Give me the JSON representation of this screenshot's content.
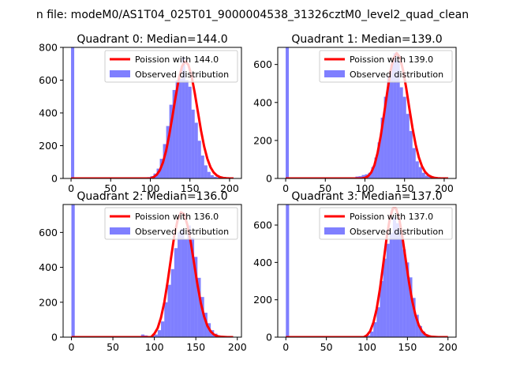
{
  "figure": {
    "suptitle": "n file: modeM0/AS1T04_025T01_9000004538_31326cztM0_level2_quad_clean"
  },
  "colors": {
    "fit_line": "#ff0000",
    "observed_bars": "#0000ff",
    "axes": "#000000",
    "legend_border": "#cccccc"
  },
  "chart_data": [
    {
      "type": "bar",
      "title": "Quadrant 0: Median=144.0",
      "median": 144.0,
      "xlim": [
        -10,
        215
      ],
      "ylim": [
        0,
        800
      ],
      "xticks": [
        0,
        50,
        100,
        150,
        200
      ],
      "yticks": [
        0,
        200,
        400,
        600,
        800
      ],
      "legend": [
        "Poission with 144.0",
        "Observed distribution"
      ],
      "legend_loc": "upper right",
      "bin_width": 4,
      "bin_starts": [
        0,
        80,
        84,
        88,
        92,
        96,
        100,
        104,
        108,
        112,
        116,
        120,
        124,
        128,
        132,
        136,
        140,
        144,
        148,
        152,
        156,
        160,
        164,
        168,
        172,
        176,
        180,
        184,
        188,
        192,
        196,
        200
      ],
      "counts": [
        800,
        2,
        2,
        3,
        5,
        8,
        14,
        30,
        60,
        120,
        210,
        320,
        450,
        540,
        600,
        610,
        740,
        600,
        560,
        420,
        340,
        230,
        140,
        80,
        40,
        20,
        10,
        6,
        3,
        2,
        1,
        1
      ],
      "fit_x": [
        0,
        100,
        104,
        108,
        112,
        116,
        120,
        124,
        128,
        132,
        136,
        140,
        144,
        148,
        152,
        156,
        160,
        164,
        168,
        172,
        176,
        180,
        184,
        188,
        192,
        196,
        200,
        205
      ],
      "fit_y": [
        0,
        0,
        8,
        22,
        50,
        98,
        170,
        268,
        382,
        500,
        608,
        684,
        715,
        694,
        626,
        524,
        408,
        292,
        194,
        120,
        68,
        36,
        18,
        8,
        3,
        1,
        0,
        0
      ]
    },
    {
      "type": "bar",
      "title": "Quadrant 1: Median=139.0",
      "median": 139.0,
      "xlim": [
        -10,
        215
      ],
      "ylim": [
        0,
        690
      ],
      "xticks": [
        0,
        50,
        100,
        150,
        200
      ],
      "yticks": [
        0,
        200,
        400,
        600
      ],
      "legend": [
        "Poission with 139.0",
        "Observed distribution"
      ],
      "legend_loc": "upper right",
      "bin_width": 4,
      "bin_starts": [
        0,
        76,
        80,
        84,
        88,
        92,
        96,
        100,
        104,
        108,
        112,
        116,
        120,
        124,
        128,
        132,
        136,
        140,
        144,
        148,
        152,
        156,
        160,
        164,
        168,
        172,
        176,
        180,
        184,
        188,
        192
      ],
      "counts": [
        690,
        3,
        4,
        5,
        10,
        12,
        18,
        22,
        30,
        60,
        110,
        190,
        320,
        430,
        540,
        600,
        660,
        620,
        480,
        430,
        340,
        250,
        160,
        90,
        60,
        30,
        15,
        8,
        4,
        2,
        1
      ],
      "fit_x": [
        0,
        96,
        100,
        104,
        108,
        112,
        116,
        120,
        124,
        128,
        132,
        136,
        140,
        144,
        148,
        152,
        156,
        160,
        164,
        168,
        172,
        176,
        180,
        184,
        188,
        192,
        196,
        200,
        205
      ],
      "fit_y": [
        0,
        0,
        3,
        12,
        32,
        70,
        135,
        225,
        335,
        450,
        560,
        632,
        660,
        638,
        572,
        478,
        370,
        266,
        178,
        111,
        64,
        34,
        17,
        8,
        3,
        1,
        0,
        0,
        0
      ]
    },
    {
      "type": "bar",
      "title": "Quadrant 2: Median=136.0",
      "median": 136.0,
      "xlim": [
        -10,
        205
      ],
      "ylim": [
        0,
        760
      ],
      "xticks": [
        0,
        50,
        100,
        150,
        200
      ],
      "yticks": [
        0,
        200,
        400,
        600
      ],
      "legend": [
        "Poission with 136.0",
        "Observed distribution"
      ],
      "legend_loc": "upper right",
      "bin_width": 4,
      "bin_starts": [
        0,
        80,
        84,
        88,
        92,
        96,
        100,
        104,
        108,
        112,
        116,
        120,
        124,
        128,
        132,
        136,
        140,
        144,
        148,
        152,
        156,
        160,
        164,
        168,
        172,
        176,
        180,
        184,
        188
      ],
      "counts": [
        760,
        3,
        15,
        10,
        6,
        8,
        15,
        40,
        90,
        200,
        300,
        390,
        510,
        600,
        620,
        560,
        640,
        570,
        460,
        340,
        230,
        140,
        80,
        40,
        20,
        10,
        5,
        2,
        1
      ],
      "fit_x": [
        0,
        96,
        100,
        104,
        108,
        112,
        116,
        120,
        124,
        128,
        132,
        136,
        140,
        144,
        148,
        152,
        156,
        160,
        164,
        168,
        172,
        176,
        180,
        184,
        188,
        192,
        195
      ],
      "fit_y": [
        0,
        0,
        20,
        52,
        112,
        200,
        318,
        450,
        580,
        670,
        715,
        705,
        640,
        540,
        420,
        300,
        196,
        118,
        64,
        32,
        14,
        6,
        2,
        1,
        0,
        0,
        0
      ]
    },
    {
      "type": "bar",
      "title": "Quadrant 3: Median=137.0",
      "median": 137.0,
      "xlim": [
        -10,
        210
      ],
      "ylim": [
        0,
        710
      ],
      "xticks": [
        0,
        50,
        100,
        150,
        200
      ],
      "yticks": [
        0,
        200,
        400,
        600
      ],
      "legend": [
        "Poission with 137.0",
        "Observed distribution"
      ],
      "legend_loc": "upper right",
      "bin_width": 4,
      "bin_starts": [
        0,
        100,
        104,
        108,
        112,
        116,
        120,
        124,
        128,
        132,
        136,
        140,
        144,
        148,
        152,
        156,
        160,
        164,
        168,
        172,
        176,
        180,
        184,
        188,
        192
      ],
      "counts": [
        710,
        10,
        30,
        80,
        160,
        300,
        420,
        500,
        560,
        640,
        610,
        560,
        470,
        400,
        320,
        210,
        120,
        60,
        30,
        15,
        6,
        3,
        2,
        1,
        1
      ],
      "fit_x": [
        0,
        96,
        100,
        104,
        108,
        112,
        116,
        120,
        124,
        128,
        132,
        136,
        140,
        144,
        148,
        152,
        156,
        160,
        164,
        168,
        172,
        176,
        180,
        184,
        188,
        192,
        196,
        200
      ],
      "fit_y": [
        0,
        0,
        10,
        32,
        78,
        150,
        256,
        386,
        520,
        630,
        690,
        690,
        630,
        530,
        410,
        292,
        192,
        116,
        64,
        32,
        14,
        6,
        2,
        1,
        0,
        0,
        0,
        0
      ]
    }
  ]
}
